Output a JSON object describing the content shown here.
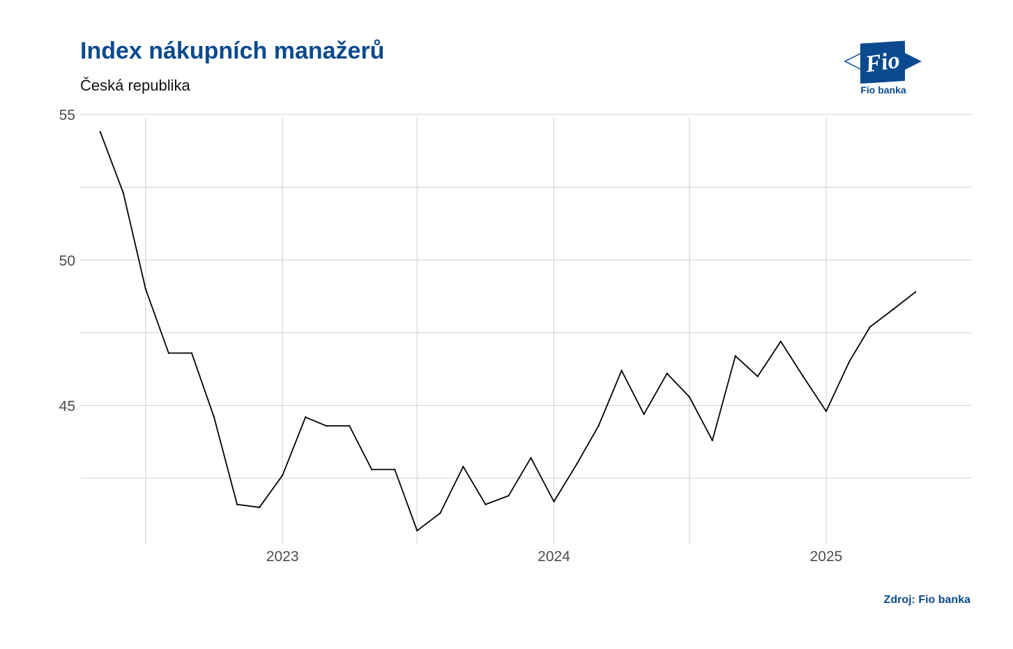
{
  "header": {
    "title": "Index nákupních manažerů",
    "subtitle": "Česká republika"
  },
  "logo": {
    "mark_text": "Fio",
    "caption": "Fio banka",
    "color": "#0b4a8e"
  },
  "footer": {
    "source": "Zdroj: Fio banka"
  },
  "chart_data": {
    "type": "line",
    "title": "Index nákupních manažerů",
    "subtitle": "Česká republika",
    "xlabel": "",
    "ylabel": "",
    "ylim": [
      40.25,
      55.1
    ],
    "xlim": [
      "2022-04-04",
      "2025-07-15"
    ],
    "grid": true,
    "y_ticks": [
      45,
      50,
      55
    ],
    "x_ticks": [
      {
        "date": "2023-01-01",
        "label": "2023"
      },
      {
        "date": "2024-01-01",
        "label": "2024"
      },
      {
        "date": "2025-01-01",
        "label": "2025"
      }
    ],
    "x_minor_grid": [
      "2022-07-01",
      "2023-07-01",
      "2024-07-01"
    ],
    "y_minor_grid": [
      42.5,
      47.5,
      52.5
    ],
    "series": [
      {
        "color": "#000000",
        "x": [
          "2022-05-01",
          "2022-06-01",
          "2022-07-01",
          "2022-08-01",
          "2022-09-01",
          "2022-10-01",
          "2022-11-01",
          "2022-12-01",
          "2023-01-01",
          "2023-02-01",
          "2023-03-01",
          "2023-04-01",
          "2023-05-01",
          "2023-06-01",
          "2023-07-01",
          "2023-08-01",
          "2023-09-01",
          "2023-10-01",
          "2023-11-01",
          "2023-12-01",
          "2024-01-01",
          "2024-02-01",
          "2024-03-01",
          "2024-04-01",
          "2024-05-01",
          "2024-06-01",
          "2024-07-01",
          "2024-08-01",
          "2024-09-01",
          "2024-10-01",
          "2024-11-01",
          "2024-12-01",
          "2025-01-01",
          "2025-02-01",
          "2025-03-01",
          "2025-04-01",
          "2025-05-01"
        ],
        "y": [
          54.4,
          52.3,
          49.0,
          46.8,
          46.8,
          44.6,
          41.6,
          41.5,
          42.6,
          44.6,
          44.3,
          44.3,
          42.8,
          42.8,
          40.7,
          41.3,
          42.9,
          41.6,
          41.9,
          43.2,
          41.7,
          43.0,
          44.3,
          46.2,
          44.7,
          46.1,
          45.3,
          43.8,
          46.7,
          46.0,
          47.2,
          46.0,
          44.8,
          46.5,
          47.7,
          48.3,
          48.9
        ]
      }
    ]
  }
}
